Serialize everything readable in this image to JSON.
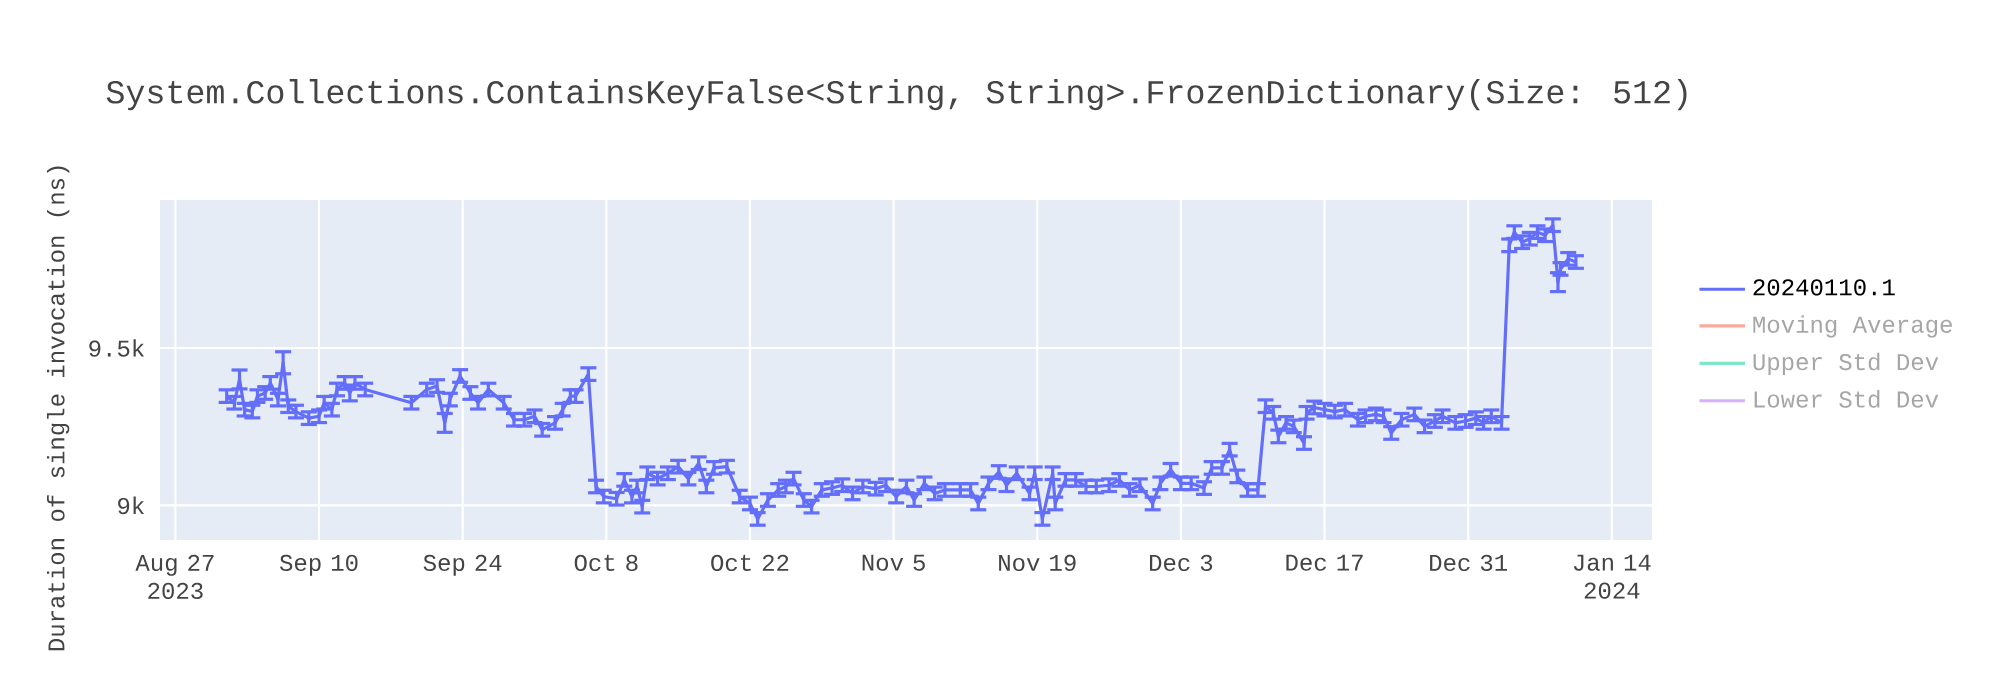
{
  "chart_data": {
    "type": "line",
    "title": "System.Collections.ContainsKeyFalse<String, String>.FrozenDictionary(Size: 512)",
    "ylabel": "Duration of single invocation (ns)",
    "xlim": [
      "2023-08-25T12:00",
      "2024-01-17T22:00"
    ],
    "ylim": [
      8890,
      9970
    ],
    "xticks": [
      {
        "value": "2023-08-27",
        "label": "Aug 27 2023"
      },
      {
        "value": "2023-09-10",
        "label": "Sep 10"
      },
      {
        "value": "2023-09-24",
        "label": "Sep 24"
      },
      {
        "value": "2023-10-08",
        "label": "Oct 8"
      },
      {
        "value": "2023-10-22",
        "label": "Oct 22"
      },
      {
        "value": "2023-11-05",
        "label": "Nov 5"
      },
      {
        "value": "2023-11-19",
        "label": "Nov 19"
      },
      {
        "value": "2023-12-03",
        "label": "Dec 3"
      },
      {
        "value": "2023-12-17",
        "label": "Dec 17"
      },
      {
        "value": "2023-12-31",
        "label": "Dec 31"
      },
      {
        "value": "2024-01-14",
        "label": "Jan 14 2024"
      }
    ],
    "yticks": [
      {
        "value": 9000,
        "label": "9k"
      },
      {
        "value": 9500,
        "label": "9.5k"
      }
    ],
    "grid": true,
    "legend": "top right",
    "marker": "none",
    "line_style": "solid",
    "series": [
      {
        "name": "20240110.1",
        "color": "#636efa",
        "x": [
          "2023-09-01T00:00",
          "2023-09-01T18:00",
          "2023-09-02T06:00",
          "2023-09-02T18:00",
          "2023-09-03T12:00",
          "2023-09-04T00:00",
          "2023-09-04T18:00",
          "2023-09-05T06:00",
          "2023-09-06T00:00",
          "2023-09-06T12:00",
          "2023-09-07T00:00",
          "2023-09-07T18:00",
          "2023-09-09T00:00",
          "2023-09-10T00:00",
          "2023-09-10T12:00",
          "2023-09-11T06:00",
          "2023-09-11T18:00",
          "2023-09-12T12:00",
          "2023-09-13T00:00",
          "2023-09-13T12:00",
          "2023-09-14T12:00",
          "2023-09-19T00:00",
          "2023-09-20T12:00",
          "2023-09-21T12:00",
          "2023-09-22T06:00",
          "2023-09-22T18:00",
          "2023-09-23T18:00",
          "2023-09-24T18:00",
          "2023-09-25T12:00",
          "2023-09-26T12:00",
          "2023-09-28T00:00",
          "2023-09-29T00:00",
          "2023-09-30T00:00",
          "2023-10-01T00:00",
          "2023-10-01T18:00",
          "2023-10-03T00:00",
          "2023-10-03T18:00",
          "2023-10-04T12:00",
          "2023-10-05T00:00",
          "2023-10-06T06:00",
          "2023-10-07T00:00",
          "2023-10-07T18:00",
          "2023-10-09T00:00",
          "2023-10-09T18:00",
          "2023-10-10T12:00",
          "2023-10-11T00:00",
          "2023-10-11T12:00",
          "2023-10-12T00:00",
          "2023-10-13T00:00",
          "2023-10-14T00:00",
          "2023-10-15T00:00",
          "2023-10-16T00:00",
          "2023-10-17T00:00",
          "2023-10-17T18:00",
          "2023-10-18T12:00",
          "2023-10-19T18:00",
          "2023-10-21T00:00",
          "2023-10-22T00:00",
          "2023-10-22T18:00",
          "2023-10-23T18:00",
          "2023-10-24T18:00",
          "2023-10-25T12:00",
          "2023-10-26T06:00",
          "2023-10-27T06:00",
          "2023-10-28T00:00",
          "2023-10-29T00:00",
          "2023-10-30T00:00",
          "2023-10-31T00:00",
          "2023-11-01T00:00",
          "2023-11-02T00:00",
          "2023-11-03T06:00",
          "2023-11-04T06:00",
          "2023-11-05T06:00",
          "2023-11-06T06:00",
          "2023-11-07T00:00",
          "2023-11-08T00:00",
          "2023-11-09T00:00",
          "2023-11-10T00:00",
          "2023-11-11T12:00",
          "2023-11-12T12:00",
          "2023-11-13T06:00",
          "2023-11-14T06:00",
          "2023-11-15T06:00",
          "2023-11-16T00:00",
          "2023-11-17T00:00",
          "2023-11-18T06:00",
          "2023-11-18T18:00",
          "2023-11-19T12:00",
          "2023-11-20T12:00",
          "2023-11-20T18:00",
          "2023-11-21T18:00",
          "2023-11-22T18:00",
          "2023-11-23T18:00",
          "2023-11-24T18:00",
          "2023-11-26T00:00",
          "2023-11-27T00:00",
          "2023-11-28T00:00",
          "2023-11-29T00:00",
          "2023-11-30T06:00",
          "2023-12-01T00:00",
          "2023-12-02T00:00",
          "2023-12-03T00:00",
          "2023-12-04T00:00",
          "2023-12-05T06:00",
          "2023-12-06T00:00",
          "2023-12-07T00:00",
          "2023-12-07T18:00",
          "2023-12-08T12:00",
          "2023-12-09T12:00",
          "2023-12-10T12:00",
          "2023-12-11T06:00",
          "2023-12-12T00:00",
          "2023-12-12T12:00",
          "2023-12-13T06:00",
          "2023-12-14T00:00",
          "2023-12-15T00:00",
          "2023-12-15T06:00",
          "2023-12-16T00:00",
          "2023-12-17T00:00",
          "2023-12-18T00:00",
          "2023-12-19T00:00",
          "2023-12-20T06:00",
          "2023-12-21T00:00",
          "2023-12-22T00:00",
          "2023-12-22T18:00",
          "2023-12-23T12:00",
          "2023-12-24T12:00",
          "2023-12-25T18:00",
          "2023-12-26T18:00",
          "2023-12-27T18:00",
          "2023-12-28T12:00",
          "2023-12-29T18:00",
          "2023-12-30T18:00",
          "2023-12-31T18:00",
          "2024-01-01T12:00",
          "2024-01-02T06:00",
          "2024-01-03T06:00",
          "2024-01-04T00:00",
          "2024-01-04T12:00",
          "2024-01-05T06:00",
          "2024-01-06T00:00",
          "2024-01-06T18:00",
          "2024-01-07T12:00",
          "2024-01-08T06:00",
          "2024-01-08T18:00",
          "2024-01-09T00:00",
          "2024-01-09T18:00",
          "2024-01-10T12:00"
        ],
        "values": [
          9347,
          9326,
          9400,
          9304,
          9298,
          9347,
          9357,
          9389,
          9336,
          9453,
          9315,
          9298,
          9277,
          9283,
          9326,
          9304,
          9368,
          9389,
          9357,
          9389,
          9368,
          9326,
          9368,
          9379,
          9262,
          9336,
          9411,
          9357,
          9326,
          9368,
          9326,
          9272,
          9272,
          9283,
          9240,
          9262,
          9304,
          9347,
          9347,
          9417,
          9060,
          9028,
          9021,
          9081,
          9028,
          9060,
          8996,
          9102,
          9085,
          9102,
          9123,
          9085,
          9134,
          9060,
          9119,
          9123,
          9028,
          9006,
          8957,
          9017,
          9049,
          9060,
          9085,
          9017,
          8996,
          9049,
          9055,
          9064,
          9038,
          9060,
          9053,
          9064,
          9028,
          9060,
          9017,
          9070,
          9038,
          9049,
          9049,
          9049,
          9006,
          9070,
          9106,
          9064,
          9102,
          9038,
          9102,
          8957,
          9102,
          9006,
          9081,
          9081,
          9060,
          9060,
          9064,
          9081,
          9049,
          9064,
          9006,
          9070,
          9113,
          9070,
          9070,
          9055,
          9119,
          9119,
          9177,
          9092,
          9049,
          9049,
          9315,
          9294,
          9219,
          9262,
          9251,
          9198,
          9294,
          9311,
          9304,
          9298,
          9304,
          9272,
          9283,
          9289,
          9283,
          9230,
          9272,
          9289,
          9251,
          9268,
          9283,
          9262,
          9268,
          9277,
          9262,
          9283,
          9262,
          9826,
          9868,
          9836,
          9847,
          9868,
          9858,
          9890,
          9709,
          9751,
          9783,
          9773
        ],
        "errors": [
          20,
          20,
          30,
          20,
          20,
          20,
          20,
          20,
          20,
          35,
          20,
          20,
          20,
          20,
          20,
          20,
          20,
          20,
          25,
          20,
          20,
          20,
          20,
          20,
          30,
          20,
          20,
          20,
          20,
          20,
          20,
          20,
          20,
          20,
          20,
          20,
          20,
          20,
          20,
          20,
          20,
          20,
          20,
          20,
          20,
          20,
          20,
          20,
          20,
          20,
          20,
          20,
          20,
          20,
          20,
          20,
          20,
          20,
          20,
          20,
          20,
          20,
          20,
          20,
          20,
          20,
          20,
          20,
          20,
          20,
          20,
          20,
          20,
          20,
          20,
          20,
          20,
          20,
          20,
          20,
          20,
          20,
          20,
          20,
          20,
          20,
          20,
          20,
          20,
          20,
          20,
          20,
          20,
          20,
          20,
          20,
          20,
          20,
          20,
          20,
          20,
          20,
          20,
          20,
          20,
          20,
          20,
          20,
          20,
          20,
          20,
          20,
          20,
          20,
          20,
          20,
          20,
          20,
          20,
          20,
          20,
          20,
          20,
          20,
          20,
          20,
          20,
          20,
          20,
          20,
          20,
          20,
          20,
          20,
          20,
          20,
          20,
          20,
          20,
          20,
          20,
          20,
          20,
          20,
          30,
          20,
          20,
          20
        ]
      },
      {
        "name": "Moving Average",
        "color": "#f7aa9d"
      },
      {
        "name": "Upper Std Dev",
        "color": "#80e5ca"
      },
      {
        "name": "Lower Std Dev",
        "color": "#d5b1fc"
      }
    ]
  }
}
